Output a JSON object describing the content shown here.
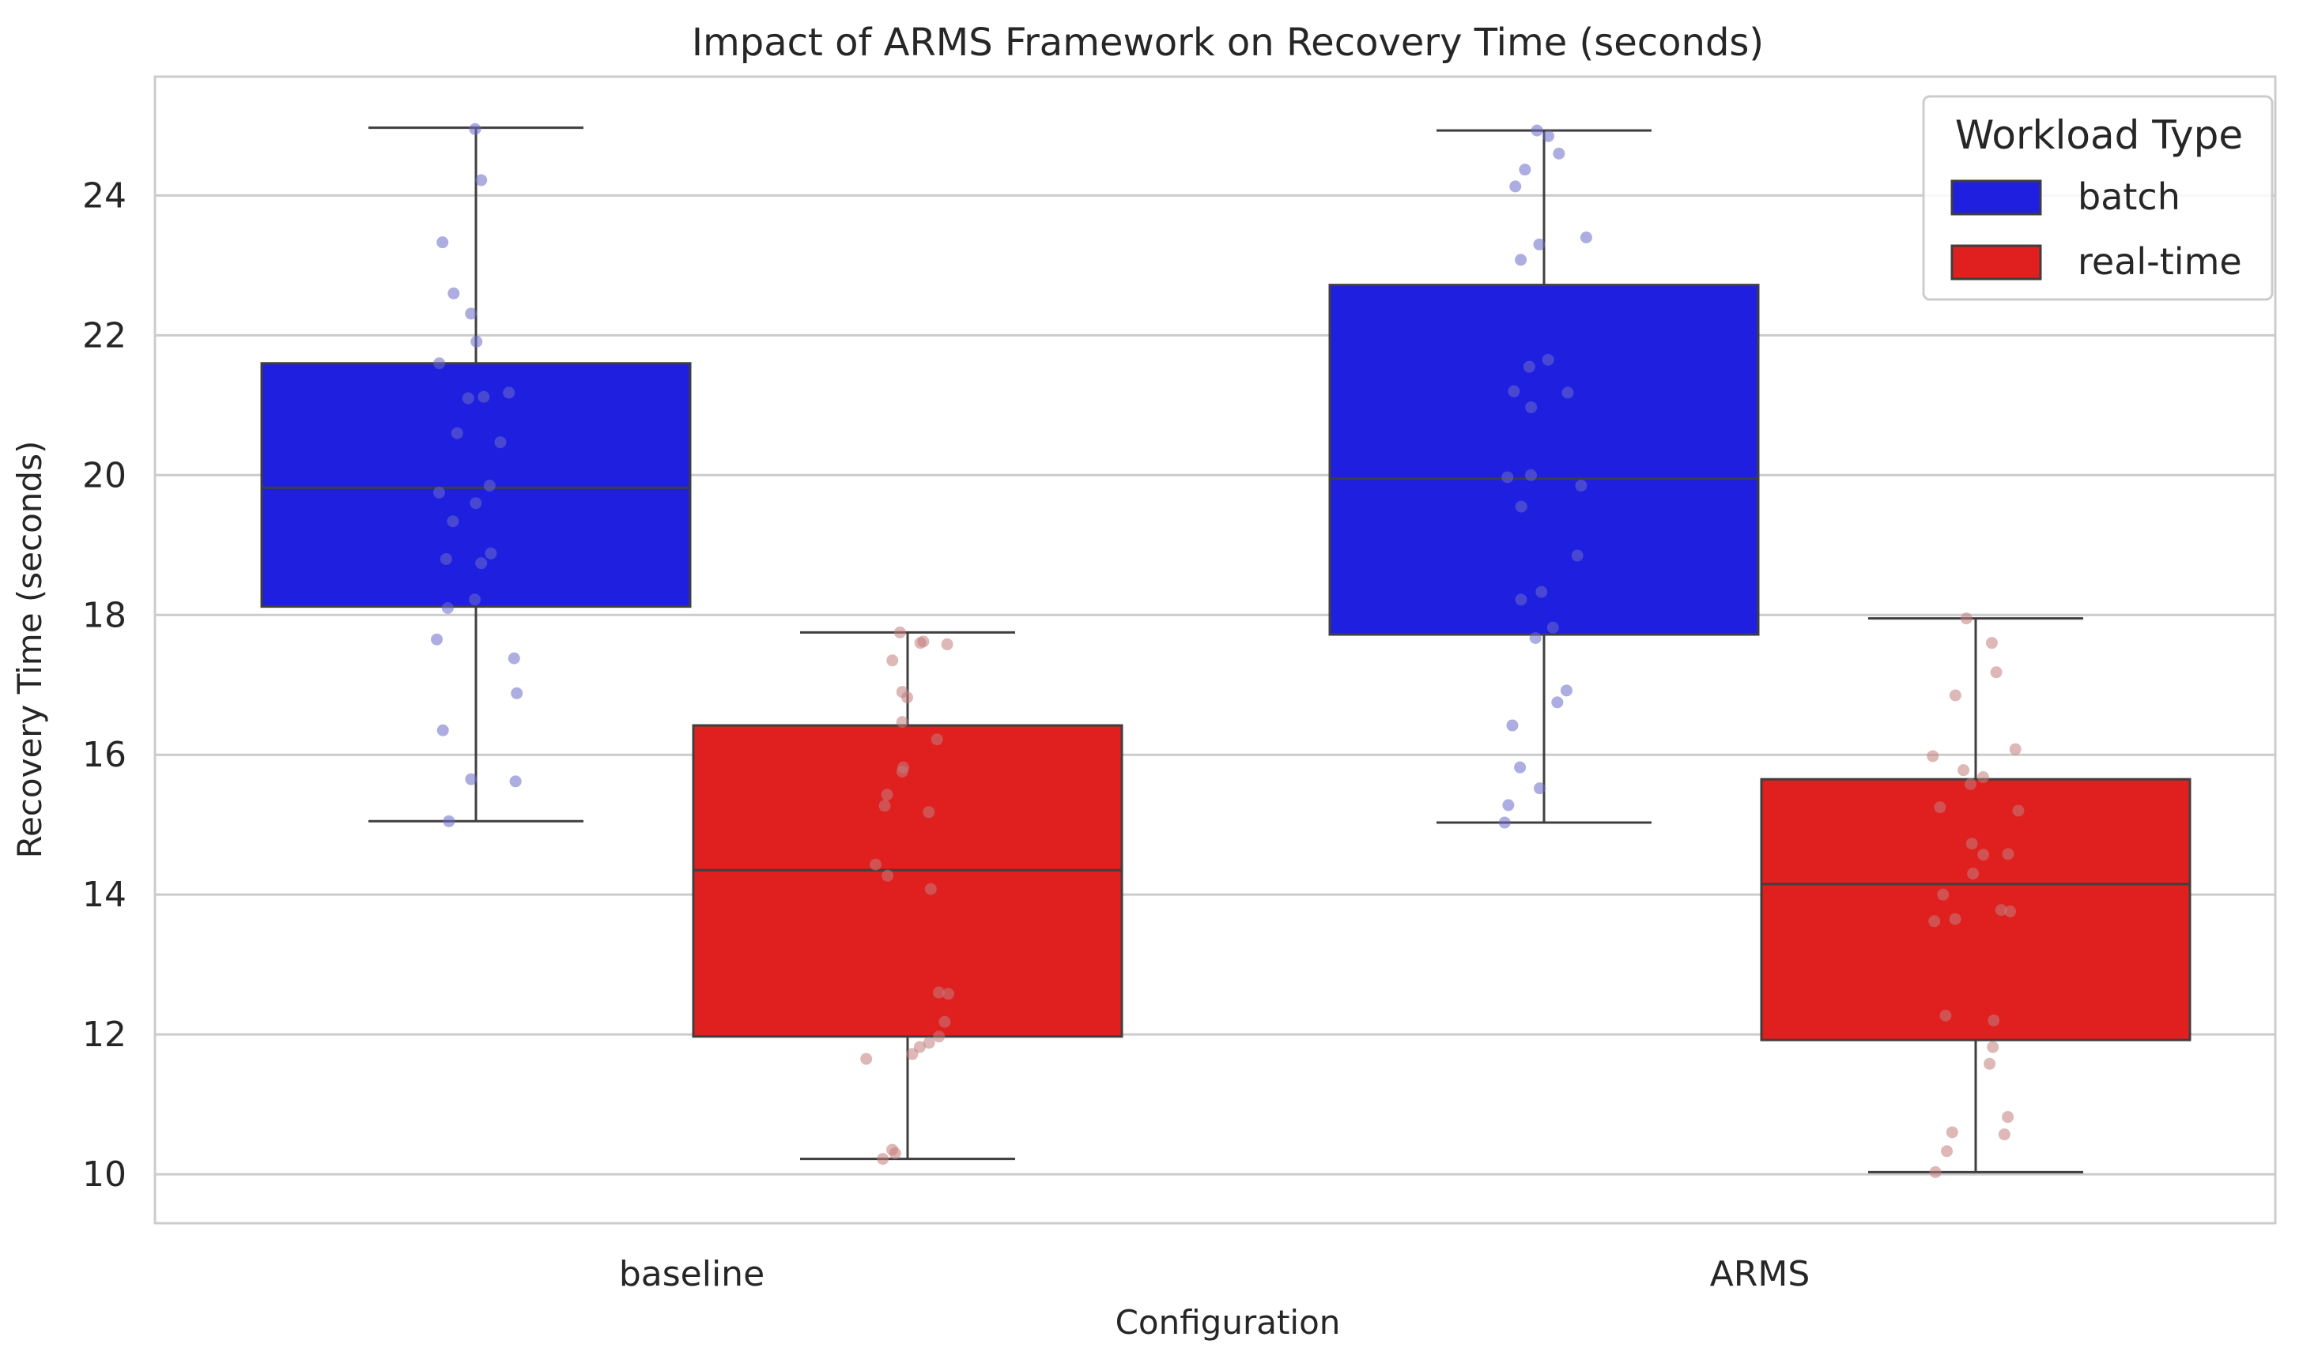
{
  "chart_data": {
    "type": "box",
    "title": "Impact of ARMS Framework on Recovery Time (seconds)",
    "xlabel": "Configuration",
    "ylabel": "Recovery Time (seconds)",
    "ylim": [
      9.3,
      25.7
    ],
    "yticks": [
      10,
      12,
      14,
      16,
      18,
      20,
      22,
      24
    ],
    "categories": [
      "baseline",
      "ARMS"
    ],
    "grid": true,
    "legend": {
      "title": "Workload Type",
      "placement": "top-right"
    },
    "series": [
      {
        "name": "batch",
        "color": "#1f1fe0",
        "point_color": "#6a6ac8",
        "boxes": [
          {
            "whisker_low": 15.05,
            "q1": 18.12,
            "median": 19.82,
            "q3": 21.6,
            "whisker_high": 24.97
          },
          {
            "whisker_low": 15.03,
            "q1": 17.72,
            "median": 19.95,
            "q3": 22.72,
            "whisker_high": 24.93
          }
        ],
        "points": [
          [
            24.95,
            24.22,
            23.33,
            22.6,
            22.31,
            21.91,
            21.6,
            21.18,
            21.12,
            21.1,
            20.6,
            20.47,
            19.85,
            19.75,
            19.6,
            19.34,
            18.88,
            18.8,
            18.74,
            18.22,
            18.1,
            17.65,
            17.38,
            16.88,
            16.35,
            15.65,
            15.62,
            15.05
          ],
          [
            24.93,
            24.85,
            24.6,
            24.37,
            24.13,
            23.4,
            23.3,
            23.08,
            21.65,
            21.55,
            21.2,
            21.18,
            20.97,
            20.0,
            19.97,
            19.85,
            19.55,
            18.85,
            18.33,
            18.22,
            17.82,
            17.67,
            16.92,
            16.75,
            16.42,
            15.82,
            15.52,
            15.28,
            15.03
          ]
        ]
      },
      {
        "name": "real-time",
        "color": "#e01f1f",
        "point_color": "#c27b7b",
        "boxes": [
          {
            "whisker_low": 10.22,
            "q1": 11.97,
            "median": 14.35,
            "q3": 16.42,
            "whisker_high": 17.75
          },
          {
            "whisker_low": 10.03,
            "q1": 11.92,
            "median": 14.15,
            "q3": 15.65,
            "whisker_high": 17.95
          }
        ],
        "points": [
          [
            17.75,
            17.62,
            17.6,
            17.58,
            17.35,
            16.9,
            16.82,
            16.47,
            16.22,
            15.82,
            15.76,
            15.43,
            15.27,
            15.18,
            14.43,
            14.27,
            14.08,
            12.6,
            12.58,
            12.18,
            11.97,
            11.88,
            11.82,
            11.72,
            11.65,
            10.35,
            10.3,
            10.22
          ],
          [
            17.95,
            17.6,
            17.18,
            16.85,
            16.08,
            15.98,
            15.78,
            15.68,
            15.58,
            15.25,
            15.2,
            14.73,
            14.58,
            14.57,
            14.3,
            14.0,
            13.78,
            13.76,
            13.65,
            13.62,
            12.27,
            12.2,
            11.82,
            11.58,
            10.82,
            10.6,
            10.57,
            10.33,
            10.03
          ]
        ]
      }
    ]
  }
}
